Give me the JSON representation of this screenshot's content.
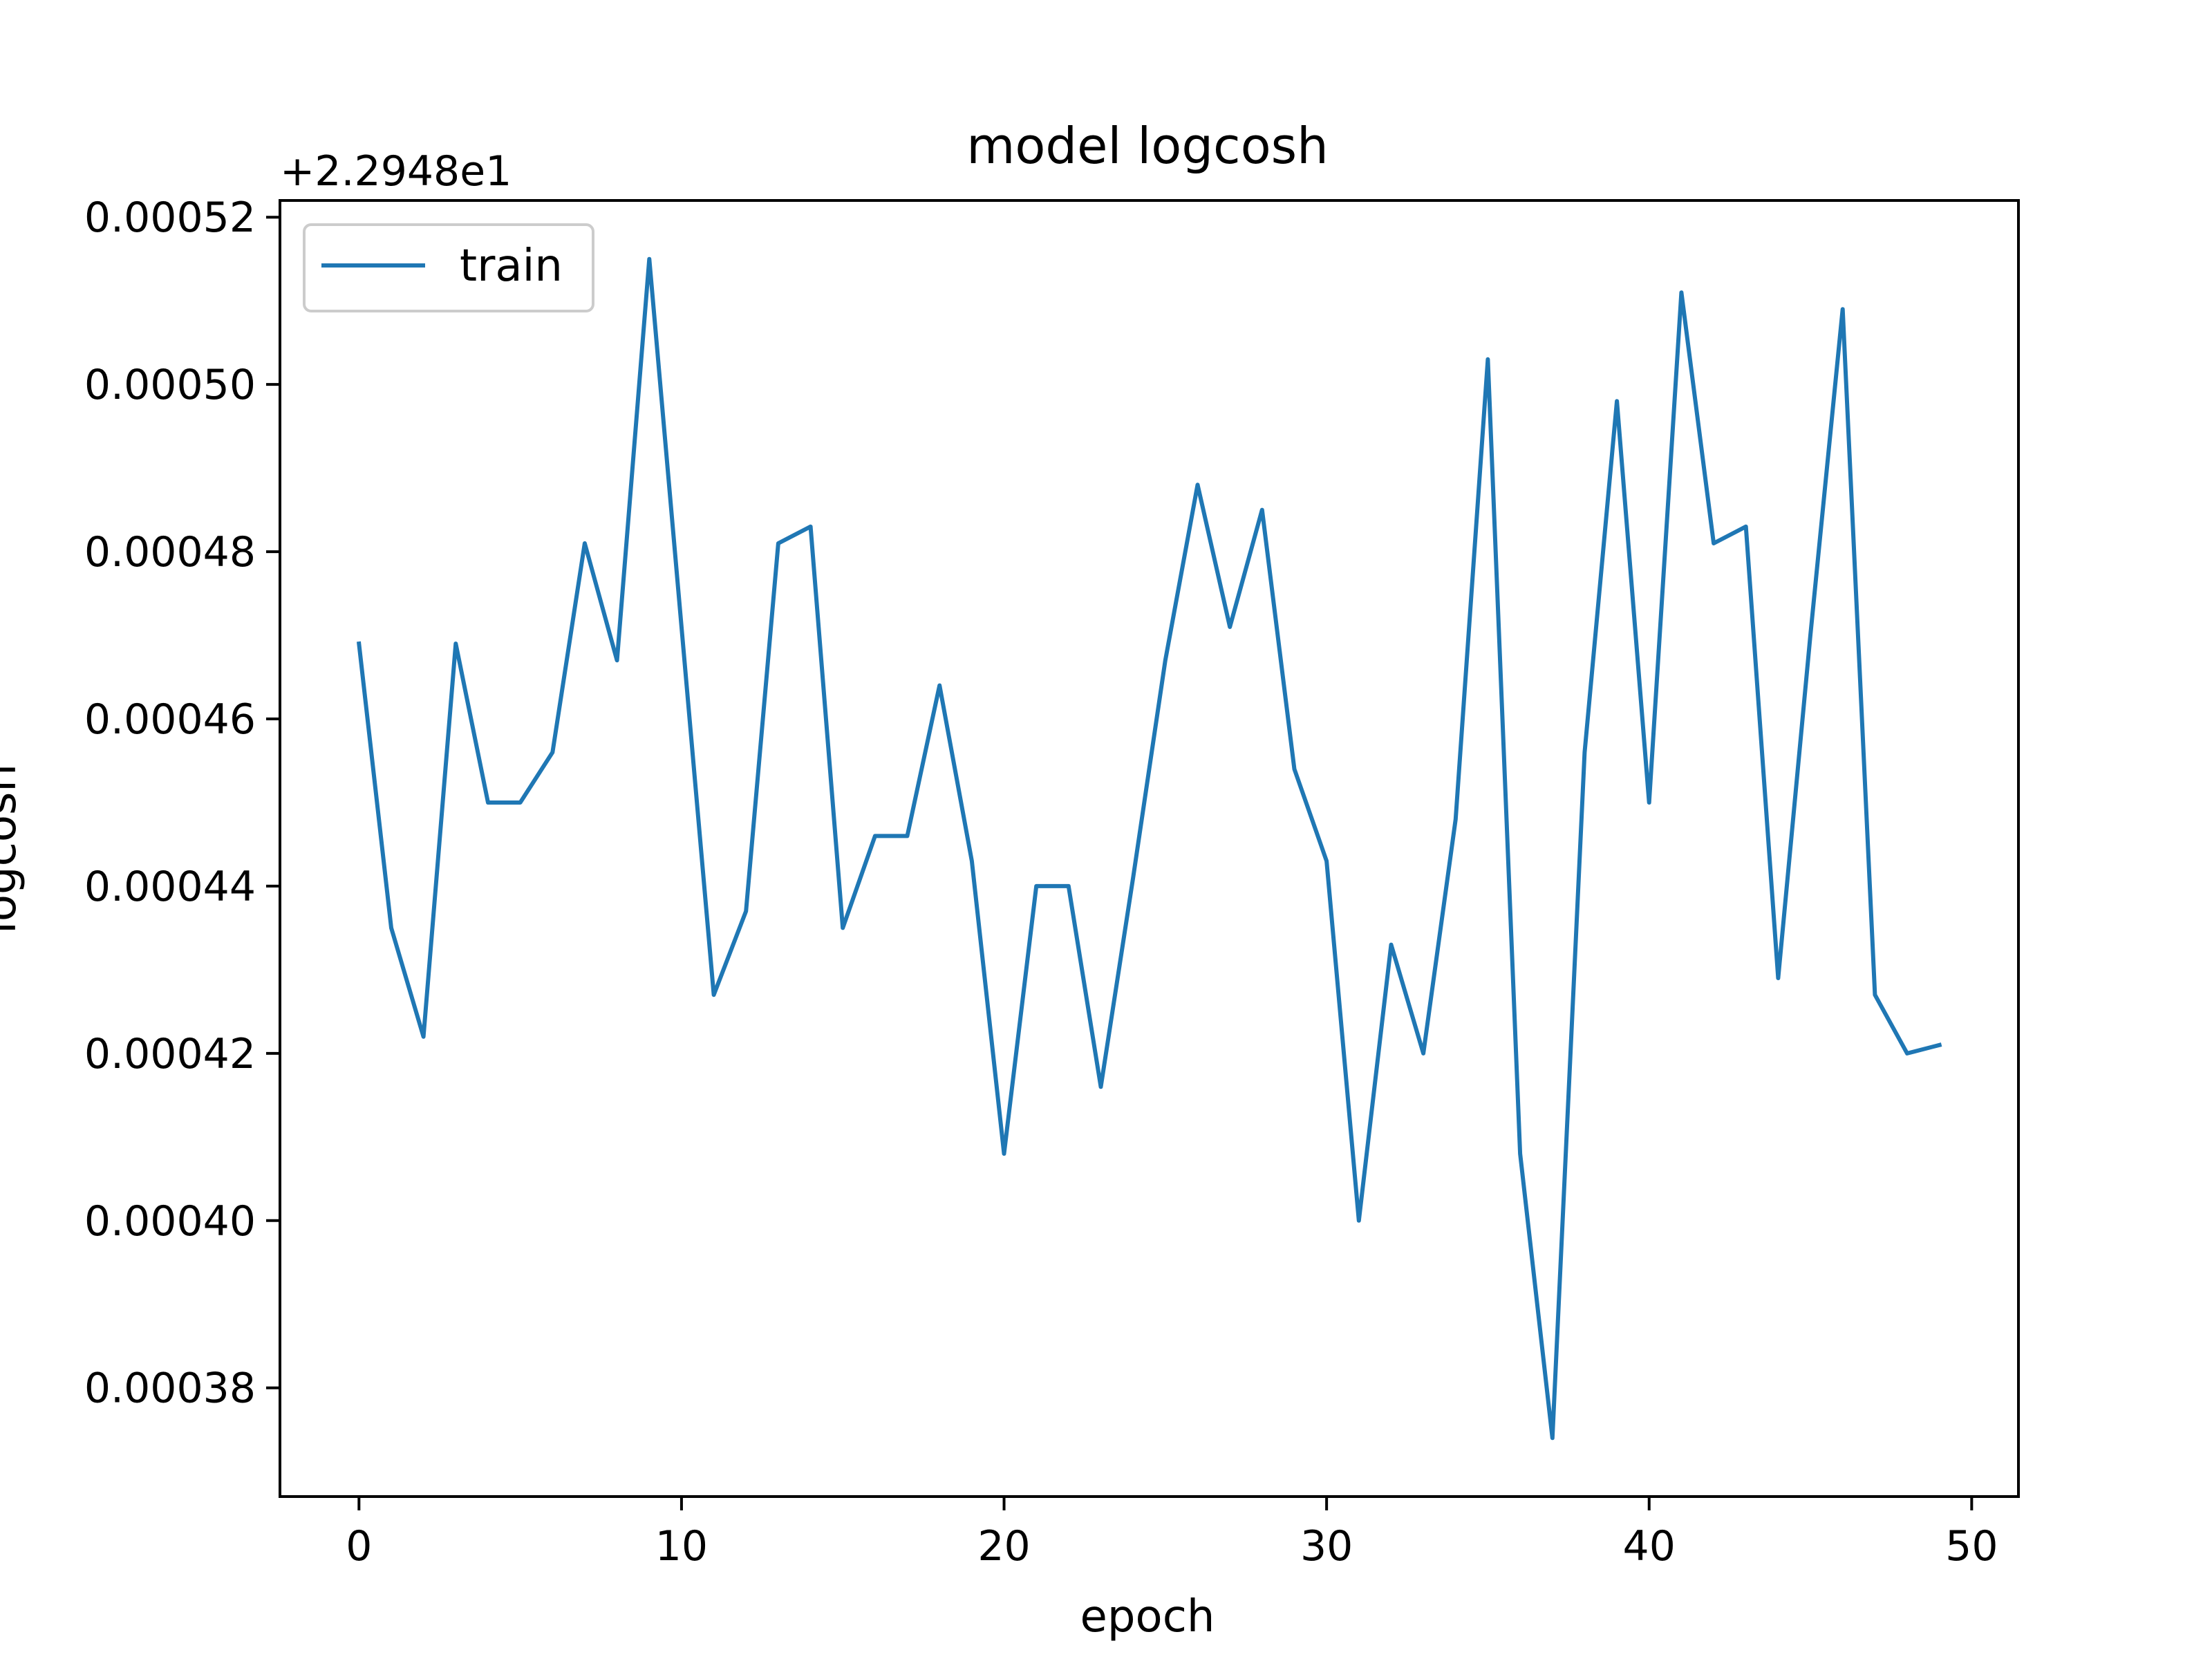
{
  "chart_data": {
    "type": "line",
    "title": "model logcosh",
    "xlabel": "epoch",
    "ylabel": "logcosh",
    "offset_label": "+2.2948e1",
    "y_offset": 22.948,
    "xlim": [
      -2.45,
      51.45
    ],
    "ylim": [
      0.000367,
      0.000522
    ],
    "x_ticks": [
      0,
      10,
      20,
      30,
      40,
      50
    ],
    "x_tick_labels": [
      "0",
      "10",
      "20",
      "30",
      "40",
      "50"
    ],
    "y_ticks": [
      0.00038,
      0.0004,
      0.00042,
      0.00044,
      0.00046,
      0.00048,
      0.0005,
      0.00052
    ],
    "y_tick_labels": [
      "0.00038",
      "0.00040",
      "0.00042",
      "0.00044",
      "0.00046",
      "0.00048",
      "0.00050",
      "0.00052"
    ],
    "grid": false,
    "legend_position": "upper left",
    "series": [
      {
        "name": "train",
        "color": "#1f77b4",
        "x": [
          0,
          1,
          2,
          3,
          4,
          5,
          6,
          7,
          8,
          9,
          10,
          11,
          12,
          13,
          14,
          15,
          16,
          17,
          18,
          19,
          20,
          21,
          22,
          23,
          24,
          25,
          26,
          27,
          28,
          29,
          30,
          31,
          32,
          33,
          34,
          35,
          36,
          37,
          38,
          39,
          40,
          41,
          42,
          43,
          44,
          45,
          46,
          47,
          48,
          49
        ],
        "values": [
          0.000469,
          0.000435,
          0.000422,
          0.000469,
          0.00045,
          0.00045,
          0.000456,
          0.000481,
          0.000467,
          0.000515,
          0.000471,
          0.000427,
          0.000437,
          0.000481,
          0.000483,
          0.000435,
          0.000446,
          0.000446,
          0.000464,
          0.000443,
          0.000408,
          0.00044,
          0.00044,
          0.000416,
          0.000441,
          0.000467,
          0.000488,
          0.000471,
          0.000485,
          0.000454,
          0.000443,
          0.0004,
          0.000433,
          0.00042,
          0.000448,
          0.000503,
          0.000408,
          0.000374,
          0.000456,
          0.000498,
          0.00045,
          0.000511,
          0.000481,
          0.000483,
          0.000429,
          0.00047,
          0.000509,
          0.000427,
          0.00042,
          0.000421
        ]
      }
    ]
  }
}
